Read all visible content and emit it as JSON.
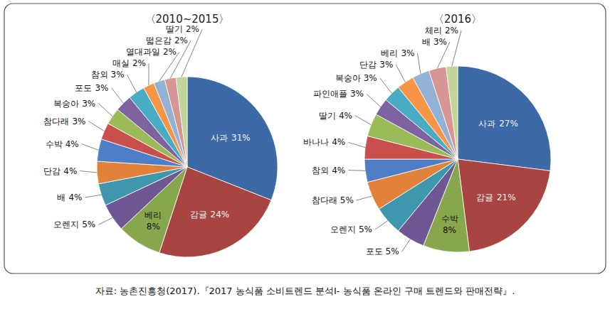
{
  "chart_data": [
    {
      "type": "pie",
      "title": "〈2010~2015〉",
      "categories": [
        "사과",
        "감귤",
        "베리",
        "오렌지",
        "배",
        "단감",
        "수박",
        "참다래",
        "복숭아",
        "포도",
        "참외",
        "매실",
        "열대과일",
        "떫은감",
        "딸기"
      ],
      "values": [
        31,
        24,
        8,
        5,
        4,
        4,
        4,
        3,
        3,
        3,
        3,
        2,
        2,
        2,
        2
      ],
      "value_labels": [
        "31%",
        "24%",
        "8%",
        "5%",
        "4%",
        "4%",
        "4%",
        "3%",
        "3%",
        "3%",
        "3%",
        "2%",
        "2%",
        "2%",
        "2%"
      ],
      "colors": [
        "#3c6aa6",
        "#a84441",
        "#88a74c",
        "#6e5792",
        "#3f97ad",
        "#e2823a",
        "#4d7ec6",
        "#c84f4c",
        "#9abb58",
        "#7f63a1",
        "#4aabc5",
        "#f69545",
        "#94b2d6",
        "#d79593",
        "#c2d59b"
      ],
      "data_labels": true
    },
    {
      "type": "pie",
      "title": "〈2016〉",
      "categories": [
        "사과",
        "감귤",
        "수박",
        "포도",
        "오렌지",
        "참다래",
        "참외",
        "바나나",
        "딸기",
        "파인애플",
        "복숭아",
        "단감",
        "베리",
        "배",
        "체리"
      ],
      "values": [
        27,
        21,
        8,
        5,
        5,
        5,
        4,
        4,
        4,
        3,
        3,
        3,
        3,
        3,
        2
      ],
      "value_labels": [
        "27%",
        "21%",
        "8%",
        "5%",
        "5%",
        "5%",
        "4%",
        "4%",
        "4%",
        "3%",
        "3%",
        "3%",
        "3%",
        "3%",
        "2%"
      ],
      "colors": [
        "#3c6aa6",
        "#a84441",
        "#88a74c",
        "#6e5792",
        "#3f97ad",
        "#e2823a",
        "#4d7ec6",
        "#c84f4c",
        "#9abb58",
        "#7f63a1",
        "#4aabc5",
        "#f69545",
        "#94b2d6",
        "#d79593",
        "#c2d59b"
      ],
      "data_labels": true
    }
  ],
  "source": "자료: 농촌진흥청(2017).『2017 농식품 소비트렌드 분석Ⅰ- 농식품 온라인 구매 트렌드와 판매전략』."
}
